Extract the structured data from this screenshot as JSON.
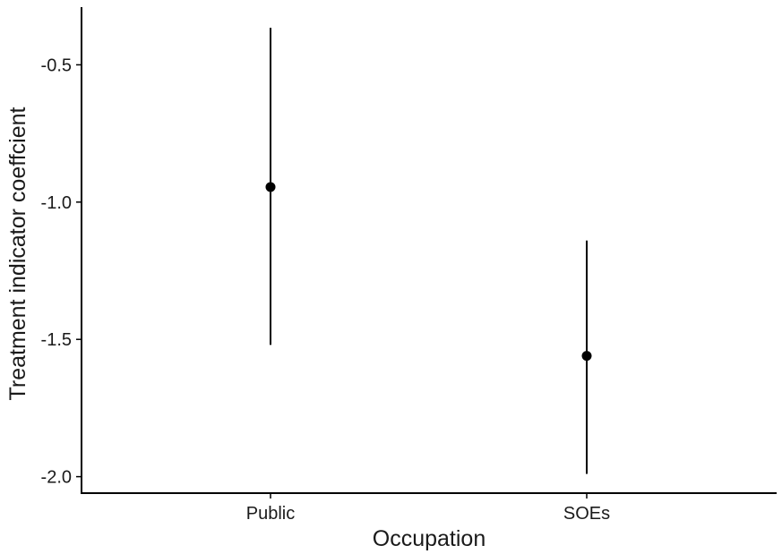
{
  "chart_data": {
    "type": "scatter",
    "subtype": "point-range",
    "xlabel": "Occupation",
    "ylabel": "Treatment indicator coeffcient",
    "categories": [
      "Public",
      "SOEs"
    ],
    "points": [
      {
        "category": "Public",
        "estimate": -0.945,
        "lower": -1.52,
        "upper": -0.365
      },
      {
        "category": "SOEs",
        "estimate": -1.56,
        "lower": -1.99,
        "upper": -1.14
      }
    ],
    "yticks": [
      -2.0,
      -1.5,
      -1.0,
      -0.5
    ],
    "ytick_labels": [
      "-2.0",
      "-1.5",
      "-1.0",
      "-0.5"
    ],
    "ylim": [
      -2.06,
      -0.29
    ],
    "grid": false,
    "legend": "none",
    "colors": {
      "mark": "#000000",
      "axis": "#000000"
    }
  }
}
